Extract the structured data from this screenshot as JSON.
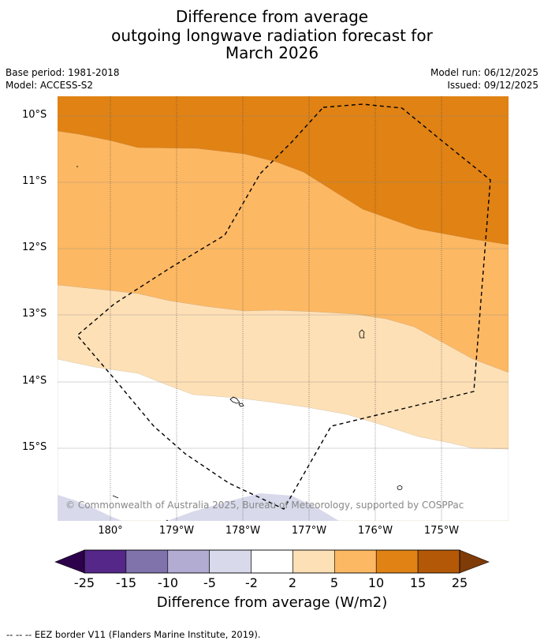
{
  "title": {
    "line1": "Difference from average",
    "line2": "outgoing longwave radiation forecast for",
    "line3": "March 2026"
  },
  "meta": {
    "base_period": "Base period: 1981-2018",
    "model": "Model: ACCESS-S2",
    "model_run": "Model run: 06/12/2025",
    "issued": "Issued: 09/12/2025"
  },
  "map": {
    "lat_ticks": [
      "10°S",
      "11°S",
      "12°S",
      "13°S",
      "14°S",
      "15°S"
    ],
    "lon_ticks": [
      "180°",
      "179°W",
      "178°W",
      "177°W",
      "176°W",
      "175°W"
    ],
    "copyright": "© Commonwealth of Australia 2025, Bureau of Meteorology, supported by COSPPac",
    "colors": {
      "c10_15": "#e08214",
      "c5_10": "#fdb863",
      "c2_5": "#fee0b6",
      "cm2_2": "#ffffff",
      "cm5_m2": "#d8daeb"
    }
  },
  "colorbar": {
    "ticks": [
      "-25",
      "-15",
      "-10",
      "-5",
      "-2",
      "2",
      "5",
      "10",
      "15",
      "25"
    ],
    "colors": [
      "#2d004b",
      "#542788",
      "#8073ac",
      "#b2abd2",
      "#d8daeb",
      "#ffffff",
      "#fee0b6",
      "#fdb863",
      "#e08214",
      "#b35806",
      "#7f3b08"
    ],
    "label": "Difference from average (W/m2)"
  },
  "footnote": "-- -- -- EEZ border V11 (Flanders Marine Institute, 2019)."
}
